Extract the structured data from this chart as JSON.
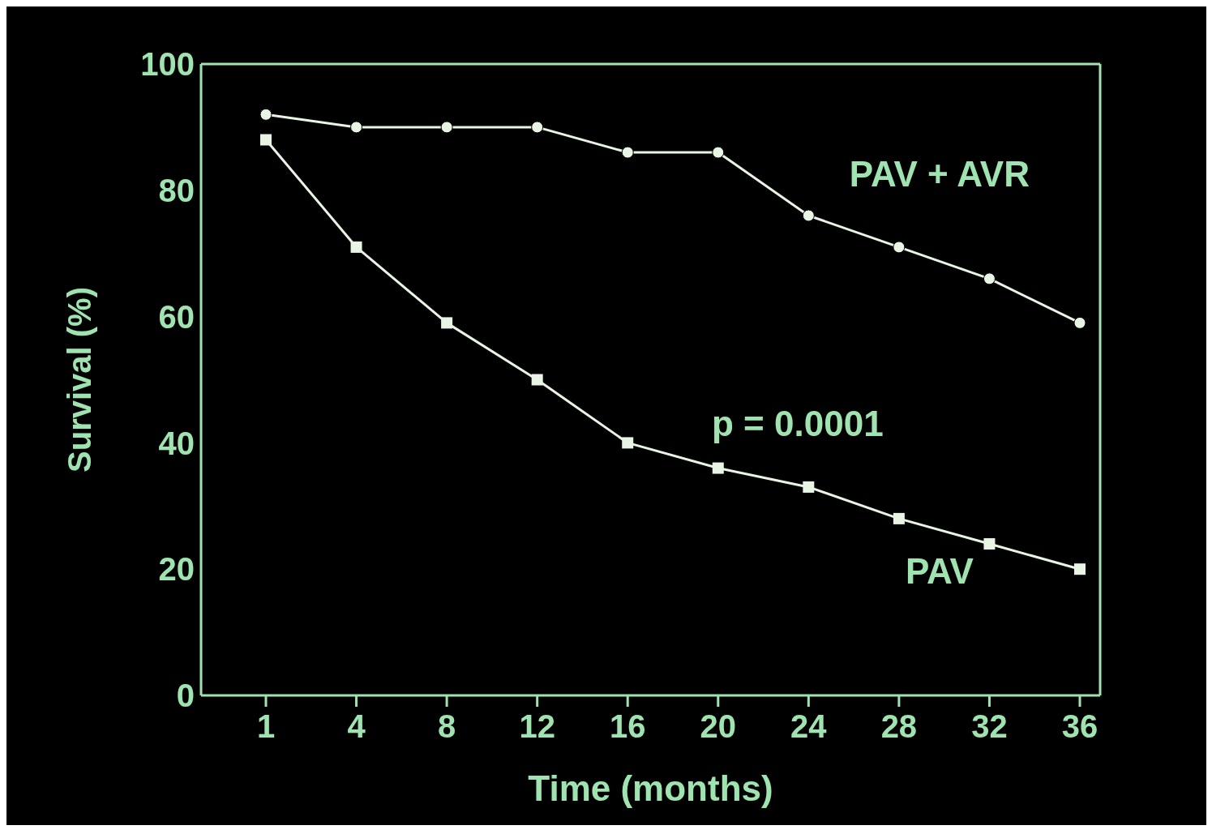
{
  "chart_data": {
    "type": "line",
    "xlabel": "Time (months)",
    "ylabel": "Survival (%)",
    "categories": [
      "1",
      "4",
      "8",
      "12",
      "16",
      "20",
      "24",
      "28",
      "32",
      "36"
    ],
    "series": [
      {
        "name": "PAV + AVR",
        "color": "#e8f4e4",
        "marker": "circle",
        "values": [
          92,
          90,
          90,
          90,
          86,
          86,
          76,
          71,
          66,
          59
        ]
      },
      {
        "name": "PAV",
        "color": "#e8f4e4",
        "marker": "square",
        "values": [
          88,
          71,
          59,
          50,
          40,
          36,
          33,
          28,
          24,
          20
        ]
      }
    ],
    "ylim": [
      0,
      100
    ],
    "yticks": [
      0,
      20,
      40,
      60,
      80,
      100
    ],
    "grid": false,
    "annotations": [
      "p = 0.0001"
    ]
  }
}
